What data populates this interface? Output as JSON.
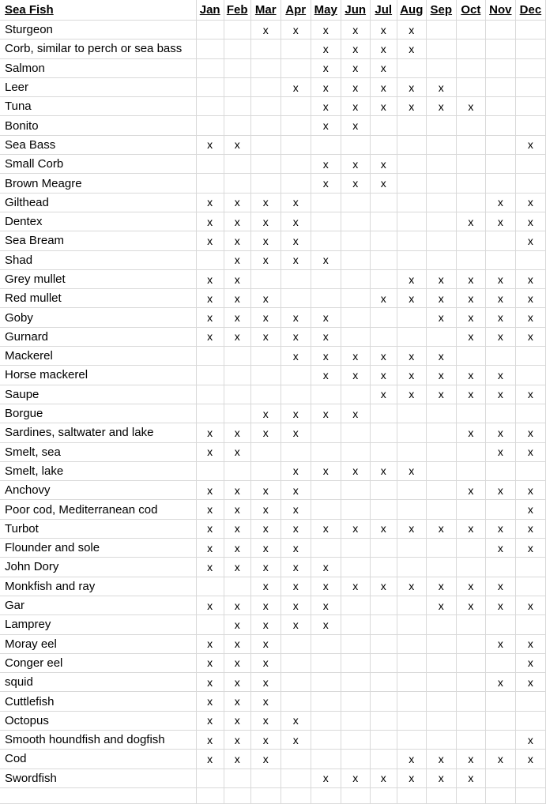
{
  "colors": {
    "background": "#ffffff",
    "gridline": "#d9d9d9",
    "text": "#000000"
  },
  "table": {
    "title_header": "Sea Fish",
    "months": [
      "Jan",
      "Feb",
      "Mar",
      "Apr",
      "May",
      "Jun",
      "Jul",
      "Aug",
      "Sep",
      "Oct",
      "Nov",
      "Dec"
    ],
    "mark": "x",
    "rows": [
      {
        "name": "Sturgeon",
        "availability": [
          0,
          0,
          1,
          1,
          1,
          1,
          1,
          1,
          0,
          0,
          0,
          0
        ]
      },
      {
        "name": "Corb, similar to perch or sea bass",
        "availability": [
          0,
          0,
          0,
          0,
          1,
          1,
          1,
          1,
          0,
          0,
          0,
          0
        ]
      },
      {
        "name": "Salmon",
        "availability": [
          0,
          0,
          0,
          0,
          1,
          1,
          1,
          0,
          0,
          0,
          0,
          0
        ]
      },
      {
        "name": "Leer",
        "availability": [
          0,
          0,
          0,
          1,
          1,
          1,
          1,
          1,
          1,
          0,
          0,
          0
        ]
      },
      {
        "name": "Tuna",
        "availability": [
          0,
          0,
          0,
          0,
          1,
          1,
          1,
          1,
          1,
          1,
          0,
          0
        ]
      },
      {
        "name": "Bonito",
        "availability": [
          0,
          0,
          0,
          0,
          1,
          1,
          0,
          0,
          0,
          0,
          0,
          0
        ]
      },
      {
        "name": "Sea Bass",
        "availability": [
          1,
          1,
          0,
          0,
          0,
          0,
          0,
          0,
          0,
          0,
          0,
          1
        ]
      },
      {
        "name": "Small Corb",
        "availability": [
          0,
          0,
          0,
          0,
          1,
          1,
          1,
          0,
          0,
          0,
          0,
          0
        ]
      },
      {
        "name": "Brown Meagre",
        "availability": [
          0,
          0,
          0,
          0,
          1,
          1,
          1,
          0,
          0,
          0,
          0,
          0
        ]
      },
      {
        "name": "Gilthead",
        "availability": [
          1,
          1,
          1,
          1,
          0,
          0,
          0,
          0,
          0,
          0,
          1,
          1
        ]
      },
      {
        "name": "Dentex",
        "availability": [
          1,
          1,
          1,
          1,
          0,
          0,
          0,
          0,
          0,
          1,
          1,
          1
        ]
      },
      {
        "name": "Sea Bream",
        "availability": [
          1,
          1,
          1,
          1,
          0,
          0,
          0,
          0,
          0,
          0,
          0,
          1
        ]
      },
      {
        "name": "Shad",
        "availability": [
          0,
          1,
          1,
          1,
          1,
          0,
          0,
          0,
          0,
          0,
          0,
          0
        ]
      },
      {
        "name": "Grey mullet",
        "availability": [
          1,
          1,
          0,
          0,
          0,
          0,
          0,
          1,
          1,
          1,
          1,
          1
        ]
      },
      {
        "name": "Red mullet",
        "availability": [
          1,
          1,
          1,
          0,
          0,
          0,
          1,
          1,
          1,
          1,
          1,
          1
        ]
      },
      {
        "name": "Goby",
        "availability": [
          1,
          1,
          1,
          1,
          1,
          0,
          0,
          0,
          1,
          1,
          1,
          1
        ]
      },
      {
        "name": "Gurnard",
        "availability": [
          1,
          1,
          1,
          1,
          1,
          0,
          0,
          0,
          0,
          1,
          1,
          1
        ]
      },
      {
        "name": "Mackerel",
        "availability": [
          0,
          0,
          0,
          1,
          1,
          1,
          1,
          1,
          1,
          0,
          0,
          0
        ]
      },
      {
        "name": "Horse mackerel",
        "availability": [
          0,
          0,
          0,
          0,
          1,
          1,
          1,
          1,
          1,
          1,
          1,
          0
        ]
      },
      {
        "name": "Saupe",
        "availability": [
          0,
          0,
          0,
          0,
          0,
          0,
          1,
          1,
          1,
          1,
          1,
          1
        ]
      },
      {
        "name": "Borgue",
        "availability": [
          0,
          0,
          1,
          1,
          1,
          1,
          0,
          0,
          0,
          0,
          0,
          0
        ]
      },
      {
        "name": "Sardines, saltwater and lake",
        "availability": [
          1,
          1,
          1,
          1,
          0,
          0,
          0,
          0,
          0,
          1,
          1,
          1
        ]
      },
      {
        "name": "Smelt, sea",
        "availability": [
          1,
          1,
          0,
          0,
          0,
          0,
          0,
          0,
          0,
          0,
          1,
          1
        ]
      },
      {
        "name": "Smelt, lake",
        "availability": [
          0,
          0,
          0,
          1,
          1,
          1,
          1,
          1,
          0,
          0,
          0,
          0
        ]
      },
      {
        "name": "Anchovy",
        "availability": [
          1,
          1,
          1,
          1,
          0,
          0,
          0,
          0,
          0,
          1,
          1,
          1
        ]
      },
      {
        "name": "Poor cod, Mediterranean cod",
        "availability": [
          1,
          1,
          1,
          1,
          0,
          0,
          0,
          0,
          0,
          0,
          0,
          1
        ]
      },
      {
        "name": "Turbot",
        "availability": [
          1,
          1,
          1,
          1,
          1,
          1,
          1,
          1,
          1,
          1,
          1,
          1
        ]
      },
      {
        "name": "Flounder and sole",
        "availability": [
          1,
          1,
          1,
          1,
          0,
          0,
          0,
          0,
          0,
          0,
          1,
          1
        ]
      },
      {
        "name": "John Dory",
        "availability": [
          1,
          1,
          1,
          1,
          1,
          0,
          0,
          0,
          0,
          0,
          0,
          0
        ]
      },
      {
        "name": "Monkfish and ray",
        "availability": [
          0,
          0,
          1,
          1,
          1,
          1,
          1,
          1,
          1,
          1,
          1,
          0
        ]
      },
      {
        "name": "Gar",
        "availability": [
          1,
          1,
          1,
          1,
          1,
          0,
          0,
          0,
          1,
          1,
          1,
          1
        ]
      },
      {
        "name": "Lamprey",
        "availability": [
          0,
          1,
          1,
          1,
          1,
          0,
          0,
          0,
          0,
          0,
          0,
          0
        ]
      },
      {
        "name": "Moray eel",
        "availability": [
          1,
          1,
          1,
          0,
          0,
          0,
          0,
          0,
          0,
          0,
          1,
          1
        ]
      },
      {
        "name": "Conger eel",
        "availability": [
          1,
          1,
          1,
          0,
          0,
          0,
          0,
          0,
          0,
          0,
          0,
          1
        ]
      },
      {
        "name": "squid",
        "availability": [
          1,
          1,
          1,
          0,
          0,
          0,
          0,
          0,
          0,
          0,
          1,
          1
        ]
      },
      {
        "name": "Cuttlefish",
        "availability": [
          1,
          1,
          1,
          0,
          0,
          0,
          0,
          0,
          0,
          0,
          0,
          0
        ]
      },
      {
        "name": "Octopus",
        "availability": [
          1,
          1,
          1,
          1,
          0,
          0,
          0,
          0,
          0,
          0,
          0,
          0
        ]
      },
      {
        "name": "Smooth houndfish and dogfish",
        "availability": [
          1,
          1,
          1,
          1,
          0,
          0,
          0,
          0,
          0,
          0,
          0,
          1
        ]
      },
      {
        "name": "Cod",
        "availability": [
          1,
          1,
          1,
          0,
          0,
          0,
          0,
          1,
          1,
          1,
          1,
          1
        ]
      },
      {
        "name": "Swordfish",
        "availability": [
          0,
          0,
          0,
          0,
          1,
          1,
          1,
          1,
          1,
          1,
          0,
          0
        ]
      }
    ]
  }
}
